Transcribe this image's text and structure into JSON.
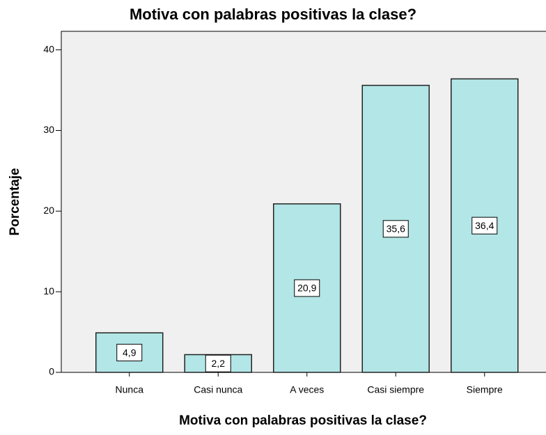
{
  "chart_data": {
    "type": "bar",
    "title": "Motiva con palabras positivas la clase?",
    "x_label": "Motiva con palabras positivas la clase?",
    "y_label": "Porcentaje",
    "categories": [
      "Nunca",
      "Casi nunca",
      "A veces",
      "Casi siempre",
      "Siempre"
    ],
    "values": [
      4.9,
      2.2,
      20.9,
      35.6,
      36.4
    ],
    "value_labels": [
      "4,9",
      "2,2",
      "20,9",
      "35,6",
      "36,4"
    ],
    "color": "#b3e6e6",
    "ylim": [
      0,
      42.3
    ],
    "yticks": [
      0,
      10,
      20,
      30,
      40
    ]
  }
}
